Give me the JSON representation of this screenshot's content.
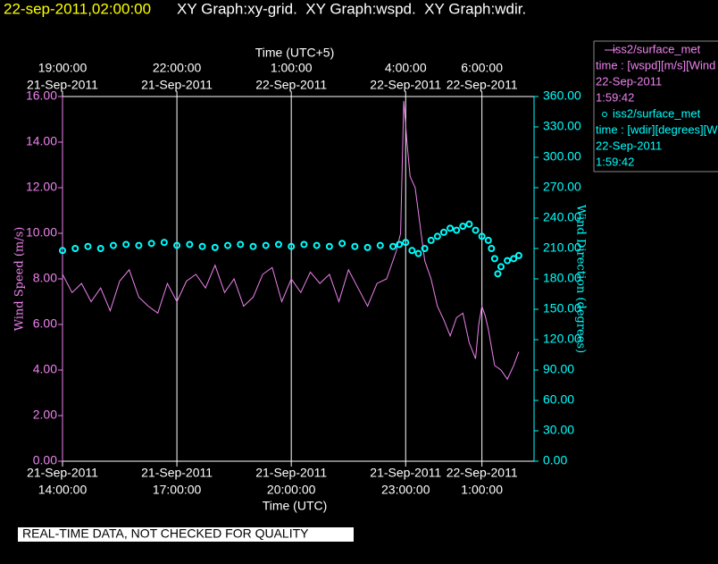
{
  "chart_data": {
    "type": "line",
    "header": {
      "timestamp": "22-sep-2011,02:00:00",
      "title": "XY Graph:xy-grid.  XY Graph:wspd.  XY Graph:wdir."
    },
    "x_label": "Time (UTC)",
    "x2_label": "Time (UTC+5)",
    "y_label": "Wind Speed (m/s)",
    "y2_label": "Wind Direction (degrees)",
    "footer": "REAL-TIME DATA, NOT CHECKED FOR QUALITY",
    "grid": true,
    "xlim": [
      "2011-09-21T14:00",
      "2011-09-22T02:22"
    ],
    "xticks": [
      {
        "value": "2011-09-21T14:00",
        "label": [
          "21-Sep-2011",
          "14:00:00"
        ]
      },
      {
        "value": "2011-09-21T17:00",
        "label": [
          "21-Sep-2011",
          "17:00:00"
        ]
      },
      {
        "value": "2011-09-21T20:00",
        "label": [
          "21-Sep-2011",
          "20:00:00"
        ]
      },
      {
        "value": "2011-09-21T23:00",
        "label": [
          "21-Sep-2011",
          "23:00:00"
        ]
      },
      {
        "value": "2011-09-22T01:00",
        "label": [
          "22-Sep-2011",
          "1:00:00"
        ]
      }
    ],
    "x2ticks": [
      {
        "value": "2011-09-21T14:00",
        "label": [
          "19:00:00",
          "21-Sep-2011"
        ]
      },
      {
        "value": "2011-09-21T17:00",
        "label": [
          "22:00:00",
          "21-Sep-2011"
        ]
      },
      {
        "value": "2011-09-21T20:00",
        "label": [
          "1:00:00",
          "22-Sep-2011"
        ]
      },
      {
        "value": "2011-09-21T23:00",
        "label": [
          "4:00:00",
          "22-Sep-2011"
        ]
      },
      {
        "value": "2011-09-22T01:00",
        "label": [
          "6:00:00",
          "22-Sep-2011"
        ]
      }
    ],
    "ylim": [
      0,
      16
    ],
    "yticks": [
      {
        "value": 0,
        "label": "0.00"
      },
      {
        "value": 2,
        "label": "2.00"
      },
      {
        "value": 4,
        "label": "4.00"
      },
      {
        "value": 6,
        "label": "6.00"
      },
      {
        "value": 8,
        "label": "8.00"
      },
      {
        "value": 10,
        "label": "10.00"
      },
      {
        "value": 12,
        "label": "12.00"
      },
      {
        "value": 14,
        "label": "14.00"
      },
      {
        "value": 16,
        "label": "16.00"
      }
    ],
    "y2lim": [
      0,
      360
    ],
    "y2ticks": [
      {
        "value": 0,
        "label": "0.00"
      },
      {
        "value": 30,
        "label": "30.00"
      },
      {
        "value": 60,
        "label": "60.00"
      },
      {
        "value": 90,
        "label": "90.00"
      },
      {
        "value": 120,
        "label": "120.00"
      },
      {
        "value": 150,
        "label": "150.00"
      },
      {
        "value": 180,
        "label": "180.00"
      },
      {
        "value": 210,
        "label": "210.00"
      },
      {
        "value": 240,
        "label": "240.00"
      },
      {
        "value": 270,
        "label": "270.00"
      },
      {
        "value": 300,
        "label": "300.00"
      },
      {
        "value": 330,
        "label": "330.00"
      },
      {
        "value": 360,
        "label": "360.00"
      }
    ],
    "series": [
      {
        "name": "iss2/surface_met",
        "legend_detail": [
          "time : [wspd][m/s][Wind",
          "22-Sep-2011",
          "1:59:42"
        ],
        "color": "#ee82ee",
        "marker": "line",
        "axis": "y",
        "x": [
          "2011-09-21T14:00",
          "2011-09-21T14:15",
          "2011-09-21T14:30",
          "2011-09-21T14:45",
          "2011-09-21T15:00",
          "2011-09-21T15:15",
          "2011-09-21T15:30",
          "2011-09-21T15:45",
          "2011-09-21T16:00",
          "2011-09-21T16:15",
          "2011-09-21T16:30",
          "2011-09-21T16:45",
          "2011-09-21T17:00",
          "2011-09-21T17:15",
          "2011-09-21T17:30",
          "2011-09-21T17:45",
          "2011-09-21T18:00",
          "2011-09-21T18:15",
          "2011-09-21T18:30",
          "2011-09-21T18:45",
          "2011-09-21T19:00",
          "2011-09-21T19:15",
          "2011-09-21T19:30",
          "2011-09-21T19:45",
          "2011-09-21T20:00",
          "2011-09-21T20:15",
          "2011-09-21T20:30",
          "2011-09-21T20:45",
          "2011-09-21T21:00",
          "2011-09-21T21:15",
          "2011-09-21T21:30",
          "2011-09-21T21:45",
          "2011-09-21T22:00",
          "2011-09-21T22:15",
          "2011-09-21T22:30",
          "2011-09-21T22:45",
          "2011-09-21T22:52",
          "2011-09-21T22:57",
          "2011-09-21T23:02",
          "2011-09-21T23:07",
          "2011-09-21T23:15",
          "2011-09-21T23:22",
          "2011-09-21T23:30",
          "2011-09-21T23:40",
          "2011-09-21T23:50",
          "2011-09-22T00:00",
          "2011-09-22T00:10",
          "2011-09-22T00:20",
          "2011-09-22T00:30",
          "2011-09-22T00:40",
          "2011-09-22T00:50",
          "2011-09-22T00:55",
          "2011-09-22T01:00",
          "2011-09-22T01:05",
          "2011-09-22T01:10",
          "2011-09-22T01:15",
          "2011-09-22T01:20",
          "2011-09-22T01:30",
          "2011-09-22T01:40",
          "2011-09-22T01:50",
          "2011-09-22T01:58"
        ],
        "values": [
          8.2,
          7.4,
          7.8,
          7.0,
          7.6,
          6.6,
          7.9,
          8.4,
          7.2,
          6.8,
          6.5,
          7.8,
          7.0,
          7.9,
          8.2,
          7.6,
          8.6,
          7.4,
          8.0,
          6.8,
          7.2,
          8.2,
          8.5,
          7.0,
          8.0,
          7.4,
          8.3,
          7.8,
          8.2,
          7.0,
          8.4,
          7.6,
          6.8,
          7.8,
          8.0,
          9.2,
          10.0,
          15.8,
          14.0,
          12.5,
          12.0,
          10.5,
          8.8,
          8.0,
          6.8,
          6.2,
          5.5,
          6.3,
          6.5,
          5.2,
          4.5,
          6.0,
          6.8,
          6.4,
          5.8,
          5.0,
          4.2,
          4.0,
          3.6,
          4.2,
          4.8
        ]
      },
      {
        "name": "iss2/surface_met",
        "legend_detail": [
          "time : [wdir][degrees][W",
          "22-Sep-2011",
          "1:59:42"
        ],
        "color": "#00ffff",
        "marker": "circle",
        "axis": "y2",
        "x": [
          "2011-09-21T14:00",
          "2011-09-21T14:20",
          "2011-09-21T14:40",
          "2011-09-21T15:00",
          "2011-09-21T15:20",
          "2011-09-21T15:40",
          "2011-09-21T16:00",
          "2011-09-21T16:20",
          "2011-09-21T16:40",
          "2011-09-21T17:00",
          "2011-09-21T17:20",
          "2011-09-21T17:40",
          "2011-09-21T18:00",
          "2011-09-21T18:20",
          "2011-09-21T18:40",
          "2011-09-21T19:00",
          "2011-09-21T19:20",
          "2011-09-21T19:40",
          "2011-09-21T20:00",
          "2011-09-21T20:20",
          "2011-09-21T20:40",
          "2011-09-21T21:00",
          "2011-09-21T21:20",
          "2011-09-21T21:40",
          "2011-09-21T22:00",
          "2011-09-21T22:20",
          "2011-09-21T22:40",
          "2011-09-21T22:50",
          "2011-09-21T23:00",
          "2011-09-21T23:10",
          "2011-09-21T23:20",
          "2011-09-21T23:30",
          "2011-09-21T23:40",
          "2011-09-21T23:50",
          "2011-09-22T00:00",
          "2011-09-22T00:10",
          "2011-09-22T00:20",
          "2011-09-22T00:30",
          "2011-09-22T00:40",
          "2011-09-22T00:50",
          "2011-09-22T01:00",
          "2011-09-22T01:10",
          "2011-09-22T01:15",
          "2011-09-22T01:20",
          "2011-09-22T01:25",
          "2011-09-22T01:30",
          "2011-09-22T01:40",
          "2011-09-22T01:50",
          "2011-09-22T01:58"
        ],
        "values": [
          208,
          210,
          212,
          210,
          213,
          214,
          213,
          215,
          216,
          213,
          214,
          212,
          211,
          213,
          214,
          212,
          213,
          214,
          212,
          214,
          213,
          212,
          215,
          212,
          211,
          213,
          212,
          214,
          216,
          208,
          205,
          210,
          218,
          222,
          226,
          230,
          228,
          232,
          234,
          228,
          222,
          218,
          210,
          200,
          185,
          192,
          198,
          200,
          203
        ]
      }
    ]
  }
}
